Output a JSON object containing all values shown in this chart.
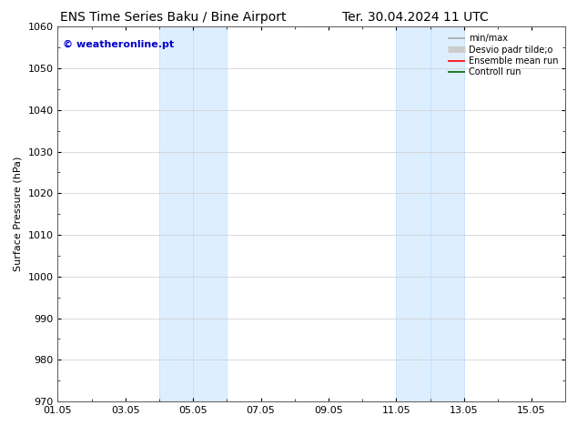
{
  "title_left": "ENS Time Series Baku / Bine Airport",
  "title_right": "Ter. 30.04.2024 11 UTC",
  "ylabel": "Surface Pressure (hPa)",
  "ylim": [
    970,
    1060
  ],
  "yticks": [
    970,
    980,
    990,
    1000,
    1010,
    1020,
    1030,
    1040,
    1050,
    1060
  ],
  "xlim": [
    0,
    15
  ],
  "xtick_labels": [
    "01.05",
    "03.05",
    "05.05",
    "07.05",
    "09.05",
    "11.05",
    "13.05",
    "15.05"
  ],
  "xtick_positions": [
    0,
    2,
    4,
    6,
    8,
    10,
    12,
    14
  ],
  "shaded_bands": [
    {
      "xmin": 3.0,
      "xmax": 4.0
    },
    {
      "xmin": 4.0,
      "xmax": 5.0
    },
    {
      "xmin": 10.0,
      "xmax": 11.0
    },
    {
      "xmin": 11.0,
      "xmax": 12.0
    }
  ],
  "shade_color": "#ddeeff",
  "shade_edge_color": "#bbddff",
  "watermark": "© weatheronline.pt",
  "watermark_color": "#0000cc",
  "legend_entries": [
    {
      "label": "min/max",
      "color": "#aaaaaa",
      "lw": 1.2
    },
    {
      "label": "Desvio padr tilde;o",
      "color": "#cccccc",
      "lw": 5
    },
    {
      "label": "Ensemble mean run",
      "color": "#ff0000",
      "lw": 1.2
    },
    {
      "label": "Controll run",
      "color": "#006600",
      "lw": 1.2
    }
  ],
  "bg_color": "#ffffff",
  "plot_bg_color": "#ffffff",
  "grid_color": "#cccccc",
  "title_fontsize": 10,
  "tick_fontsize": 8,
  "ylabel_fontsize": 8,
  "watermark_fontsize": 8
}
